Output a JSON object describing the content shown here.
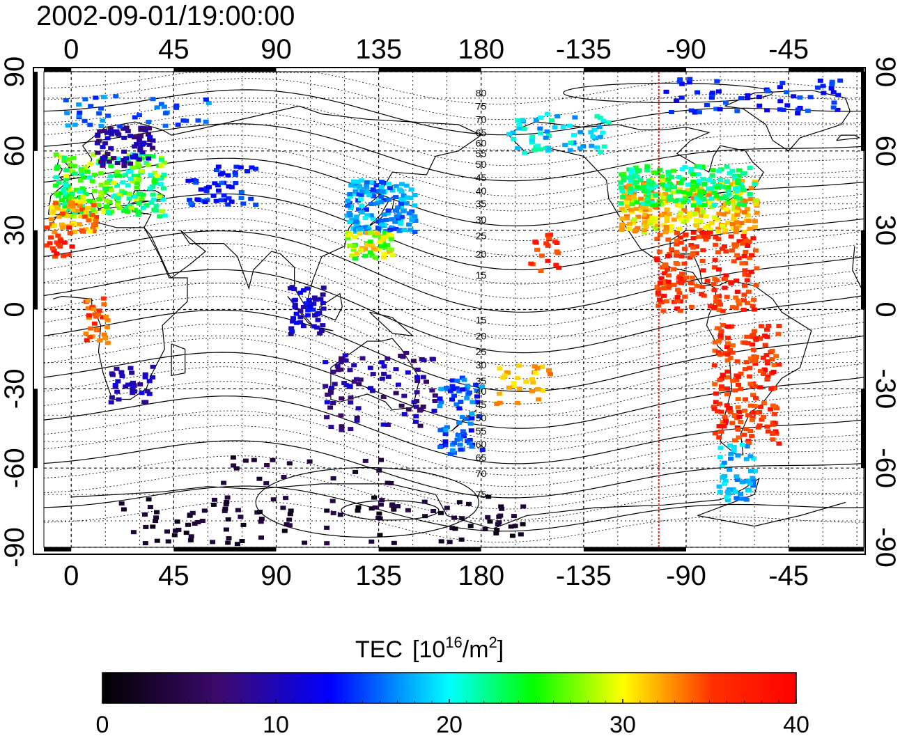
{
  "title": "2002-09-01/19:00:00",
  "map": {
    "projection": "equirectangular",
    "lon_ticks": [
      "0",
      "45",
      "90",
      "135",
      "180",
      "-135",
      "-90",
      "-45"
    ],
    "lat_ticks": [
      "90",
      "60",
      "30",
      "0",
      "-30",
      "-60",
      "-90"
    ],
    "lon_range_deg": [
      -12,
      348
    ],
    "lat_range_deg": [
      -90,
      90
    ],
    "grid": true,
    "coastlines": true,
    "meridian_marker_lon": -102,
    "meridian_marker_color": "#e8201e",
    "contour_labels": [
      "80",
      "75",
      "70",
      "65",
      "60",
      "55",
      "50",
      "45",
      "40",
      "35",
      "30",
      "25",
      "20",
      "15",
      "15",
      "20",
      "25",
      "30",
      "35",
      "40",
      "45",
      "50",
      "55",
      "60",
      "65",
      "70",
      "75"
    ]
  },
  "colorbar": {
    "label_main": "TEC",
    "label_unit_prefix": "[10",
    "label_unit_exp1": "16",
    "label_unit_mid": "/m",
    "label_unit_exp2": "2",
    "label_unit_suffix": "]",
    "ticks": [
      "0",
      "10",
      "20",
      "30",
      "40"
    ],
    "range": [
      0,
      40
    ],
    "colors": [
      "#000000",
      "#3c0a6e",
      "#0000ff",
      "#00ffff",
      "#00ff00",
      "#ffff00",
      "#ff0000"
    ]
  }
}
